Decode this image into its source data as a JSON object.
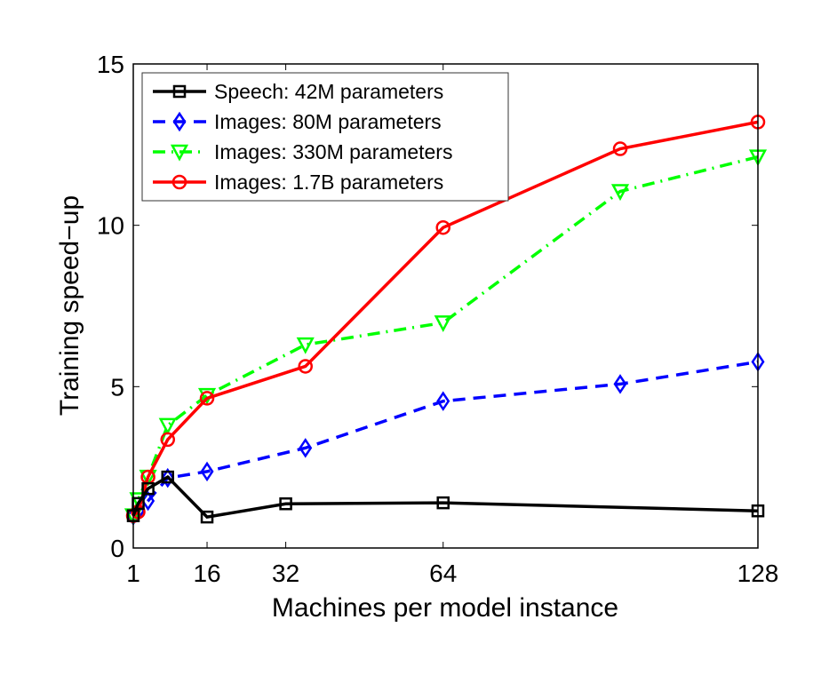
{
  "chart_data": {
    "type": "line",
    "title": "",
    "xlabel": "Machines per model instance",
    "ylabel": "Training speed−up",
    "xlim": [
      1,
      128
    ],
    "ylim": [
      0,
      15
    ],
    "xticks": [
      1,
      16,
      32,
      64,
      128
    ],
    "yticks": [
      0,
      5,
      10,
      15
    ],
    "grid": false,
    "legend_position": "top-left",
    "series": [
      {
        "name": "Speech: 42M parameters",
        "color": "#000000",
        "marker": "square",
        "dash": "solid",
        "x": [
          1,
          2,
          4,
          8,
          16,
          32,
          64,
          128
        ],
        "y": [
          1.0,
          1.38,
          1.84,
          2.2,
          0.96,
          1.37,
          1.4,
          1.15
        ]
      },
      {
        "name": "Images: 80M parameters",
        "color": "#0000ff",
        "marker": "diamond",
        "dash": "dashed",
        "x": [
          1,
          2,
          4,
          8,
          16,
          36,
          64,
          100,
          128
        ],
        "y": [
          1.0,
          1.15,
          1.46,
          2.17,
          2.37,
          3.1,
          4.55,
          5.08,
          5.77
        ]
      },
      {
        "name": "Images: 330M parameters",
        "color": "#00ff00",
        "marker": "triangle-down",
        "dash": "dash-dot",
        "x": [
          1,
          2,
          4,
          8,
          16,
          36,
          64,
          100,
          128
        ],
        "y": [
          1.0,
          1.5,
          2.2,
          3.8,
          4.73,
          6.3,
          6.98,
          11.05,
          12.12
        ]
      },
      {
        "name": "Images: 1.7B parameters",
        "color": "#ff0000",
        "marker": "circle",
        "dash": "solid",
        "x": [
          1,
          2,
          4,
          8,
          16,
          36,
          64,
          100,
          128
        ],
        "y": [
          1.0,
          1.12,
          2.2,
          3.36,
          4.64,
          5.63,
          9.93,
          12.37,
          13.2
        ]
      }
    ]
  }
}
